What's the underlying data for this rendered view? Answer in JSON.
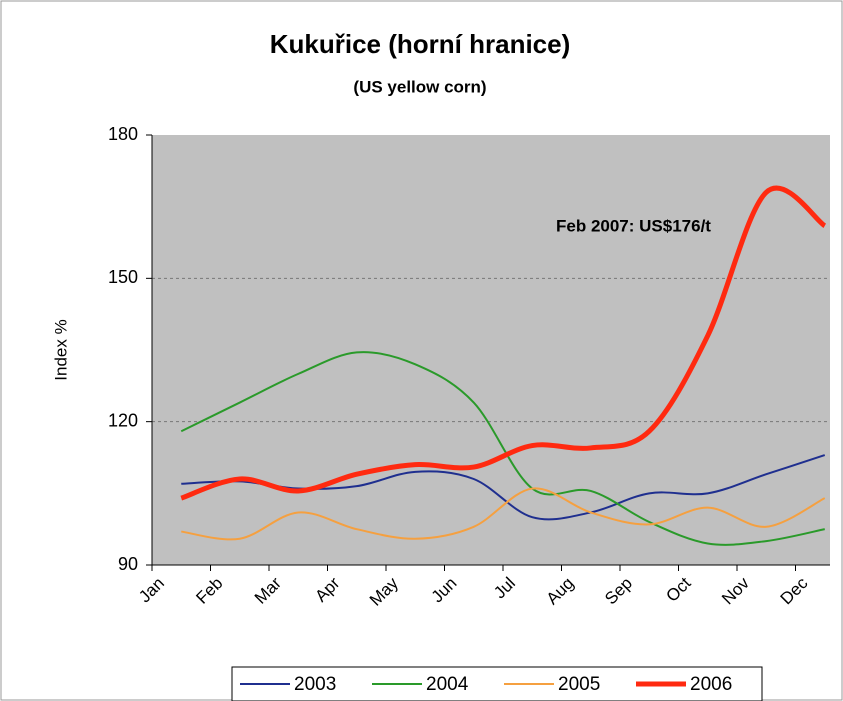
{
  "chart_data": {
    "type": "line",
    "title": "Kukuřice (horní hranice)",
    "subtitle": "(US yellow corn)",
    "y_label": "Index %",
    "annotation": "Feb 2007: US$176/t",
    "categories": [
      "Jan",
      "Feb",
      "Mar",
      "Apr",
      "May",
      "Jun",
      "Jul",
      "Aug",
      "Sep",
      "Oct",
      "Nov",
      "Dec"
    ],
    "series": [
      {
        "name": "2003",
        "color": "#1f2f8f",
        "values": [
          107,
          107.5,
          106,
          106.5,
          109.5,
          108,
          100,
          101,
          105,
          105,
          109,
          113
        ]
      },
      {
        "name": "2004",
        "color": "#2a9a2a",
        "values": [
          118,
          124,
          130,
          134.5,
          132,
          124,
          106,
          105.5,
          99,
          94.5,
          95,
          97.5
        ]
      },
      {
        "name": "2005",
        "color": "#f5a040",
        "values": [
          97,
          95.5,
          101,
          97.5,
          95.5,
          98,
          106,
          101,
          98.5,
          102,
          98,
          104
        ]
      },
      {
        "name": "2006",
        "color": "#ff2a10",
        "values": [
          104,
          108,
          105.5,
          109,
          111,
          110.5,
          115,
          114.5,
          118,
          138,
          168,
          161
        ]
      }
    ],
    "ylim": [
      90,
      180
    ],
    "yticks": [
      90,
      120,
      150,
      180
    ],
    "grid": true,
    "legend": "bottom"
  }
}
